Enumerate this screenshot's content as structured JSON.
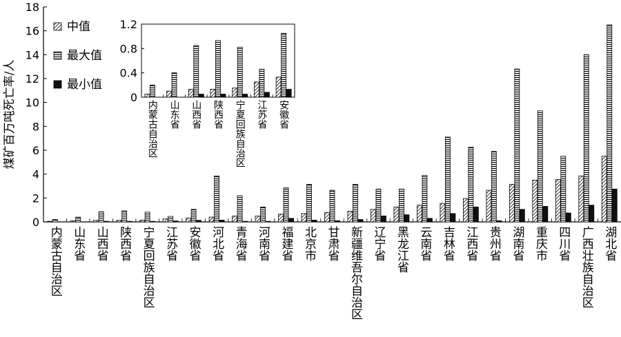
{
  "chart_data": [
    {
      "type": "bar",
      "ylabel": "煤矿百万吨死亡率/人",
      "ylim": [
        0,
        18
      ],
      "yticks": [
        0,
        2,
        4,
        6,
        8,
        10,
        12,
        14,
        16,
        18
      ],
      "legend_position": "top-left",
      "categories": [
        "内蒙古自治区",
        "山东省",
        "山西省",
        "陕西省",
        "宁夏回族自治区",
        "江苏省",
        "安徽省",
        "河北省",
        "青海省",
        "河南省",
        "福建省",
        "北京市",
        "甘肃省",
        "新疆维吾尔自治区",
        "辽宁省",
        "黑龙江省",
        "云南省",
        "吉林省",
        "江西省",
        "贵州省",
        "湖南省",
        "重庆市",
        "四川省",
        "广西壮族自治区",
        "湖北省"
      ],
      "series": [
        {
          "name": "中值",
          "pattern": "diagonal-hatch",
          "values": [
            0.05,
            0.1,
            0.13,
            0.13,
            0.15,
            0.25,
            0.33,
            0.4,
            0.5,
            0.5,
            0.65,
            0.7,
            0.8,
            0.9,
            1.05,
            1.25,
            1.4,
            1.55,
            1.95,
            2.65,
            3.15,
            3.5,
            3.55,
            3.85,
            5.5
          ]
        },
        {
          "name": "最大值",
          "pattern": "horizontal-hatch",
          "values": [
            0.2,
            0.4,
            0.85,
            0.93,
            0.82,
            0.46,
            1.05,
            3.85,
            2.2,
            1.25,
            2.85,
            3.15,
            2.65,
            3.15,
            2.75,
            2.75,
            3.9,
            7.1,
            6.25,
            5.9,
            12.8,
            9.3,
            5.5,
            14.0,
            16.5
          ]
        },
        {
          "name": "最小值",
          "pattern": "solid",
          "values": [
            0,
            0,
            0.05,
            0.05,
            0.05,
            0.08,
            0.13,
            0.15,
            0.05,
            0.05,
            0.3,
            0.15,
            0.1,
            0.2,
            0.5,
            0.6,
            0.3,
            0.7,
            1.25,
            0.1,
            1.05,
            1.3,
            0.75,
            1.4,
            2.75
          ]
        }
      ]
    },
    {
      "type": "bar",
      "ylim": [
        0,
        1.2
      ],
      "yticks": [
        0,
        0.4,
        0.8,
        1.2
      ],
      "ytick_labels": [
        "0",
        "0.4",
        "0.8",
        "1.2"
      ],
      "categories": [
        "内蒙古自治区",
        "山东省",
        "山西省",
        "陕西省",
        "宁夏回族自治区",
        "江苏省",
        "安徽省"
      ],
      "series": [
        {
          "pattern": "diagonal-hatch",
          "values": [
            0.05,
            0.1,
            0.13,
            0.13,
            0.15,
            0.25,
            0.33
          ]
        },
        {
          "pattern": "horizontal-hatch",
          "values": [
            0.2,
            0.4,
            0.85,
            0.93,
            0.82,
            0.46,
            1.05
          ]
        },
        {
          "pattern": "solid",
          "values": [
            0,
            0,
            0.05,
            0.05,
            0.05,
            0.08,
            0.13
          ]
        }
      ]
    }
  ]
}
